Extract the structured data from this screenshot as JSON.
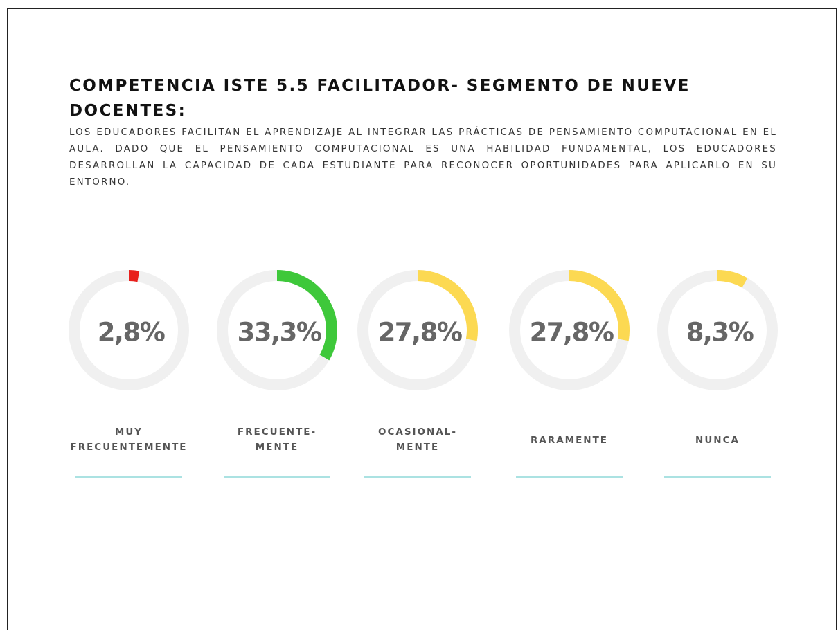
{
  "chart_data": {
    "type": "gauge",
    "title": "COMPETENCIA ISTE 5.5 FACILITADOR- SEGMENTO DE NUEVE DOCENTES:",
    "subtitle": "LOS EDUCADORES FACILITAN EL APRENDIZAJE AL INTEGRAR LAS PRÁCTICAS DE PENSAMIENTO COMPUTACIONAL EN EL AULA. DADO QUE EL PENSAMIENTO COMPUTACIONAL ES UNA HABILIDAD FUNDAMENTAL, LOS EDUCADORES DESARROLLAN LA CAPACIDAD DE CADA ESTUDIANTE PARA RECONOCER OPORTUNIDADES PARA APLICARLO EN SU ENTORNO.",
    "categories": [
      "MUY FRECUENTEMENTE",
      "FRECUENTE- MENTE",
      "OCASIONAL- MENTE",
      "RARAMENTE",
      "NUNCA"
    ],
    "values": [
      2.8,
      33.3,
      27.8,
      27.8,
      8.3
    ],
    "value_labels": [
      "2,8%",
      "33,3%",
      "27,8%",
      "27,8%",
      "8,3%"
    ],
    "colors": [
      "#e8201c",
      "#3ec83a",
      "#fcd952",
      "#fcd952",
      "#fcd952"
    ],
    "ylim": [
      0,
      100
    ]
  }
}
